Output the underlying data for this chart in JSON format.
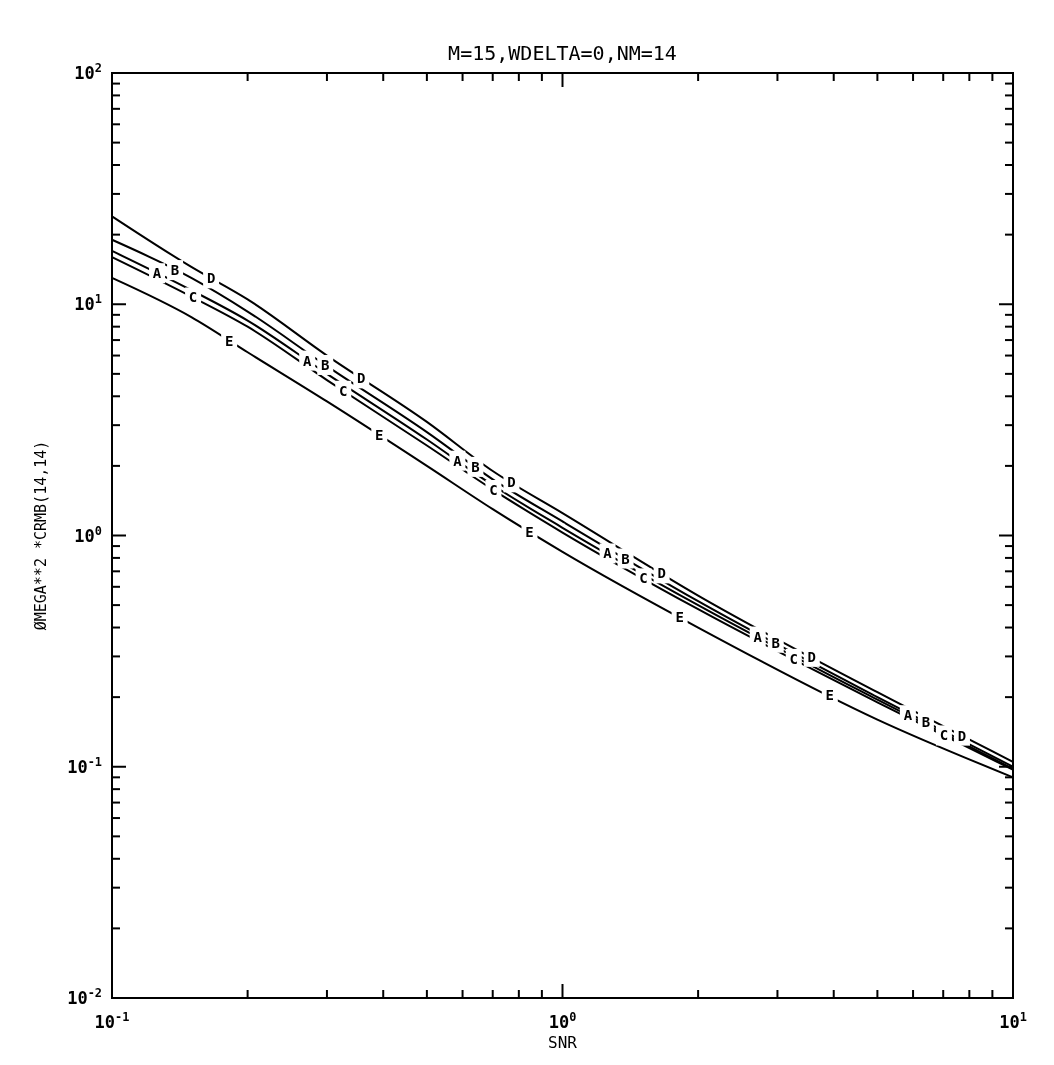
{
  "chart_data": {
    "type": "line",
    "title": "M=15,WDELTA=0,NM=14",
    "xlabel": "SNR",
    "ylabel": "ØMEGA**2 *CRMB(14,14)",
    "log": "xy",
    "grid": false,
    "legend": false,
    "marker": "none",
    "line_style": "solid",
    "xlim": [
      0.1,
      10
    ],
    "ylim": [
      0.01,
      100
    ],
    "xticks": [
      {
        "value": 0.1,
        "label": "10$^{-1}$"
      },
      {
        "value": 0.2,
        "label": null
      },
      {
        "value": 0.3,
        "label": null
      },
      {
        "value": 0.4,
        "label": null
      },
      {
        "value": 0.5,
        "label": null
      },
      {
        "value": 0.6,
        "label": null
      },
      {
        "value": 0.7,
        "label": null
      },
      {
        "value": 0.8,
        "label": null
      },
      {
        "value": 0.9,
        "label": null
      },
      {
        "value": 1,
        "label": "10$^{0}$"
      },
      {
        "value": 2,
        "label": null
      },
      {
        "value": 3,
        "label": null
      },
      {
        "value": 4,
        "label": null
      },
      {
        "value": 5,
        "label": null
      },
      {
        "value": 6,
        "label": null
      },
      {
        "value": 7,
        "label": null
      },
      {
        "value": 8,
        "label": null
      },
      {
        "value": 9,
        "label": null
      },
      {
        "value": 10,
        "label": "10$^{1}$"
      }
    ],
    "yticks": [
      {
        "value": 0.01,
        "label": "10$^{-2}$"
      },
      {
        "value": 0.02,
        "label": null
      },
      {
        "value": 0.03,
        "label": null
      },
      {
        "value": 0.04,
        "label": null
      },
      {
        "value": 0.05,
        "label": null
      },
      {
        "value": 0.06,
        "label": null
      },
      {
        "value": 0.07,
        "label": null
      },
      {
        "value": 0.08,
        "label": null
      },
      {
        "value": 0.09,
        "label": null
      },
      {
        "value": 0.1,
        "label": "10$^{-1}$"
      },
      {
        "value": 0.2,
        "label": null
      },
      {
        "value": 0.3,
        "label": null
      },
      {
        "value": 0.4,
        "label": null
      },
      {
        "value": 0.5,
        "label": null
      },
      {
        "value": 0.6,
        "label": null
      },
      {
        "value": 0.7,
        "label": null
      },
      {
        "value": 0.8,
        "label": null
      },
      {
        "value": 0.9,
        "label": null
      },
      {
        "value": 1,
        "label": "10$^{0}$"
      },
      {
        "value": 2,
        "label": null
      },
      {
        "value": 3,
        "label": null
      },
      {
        "value": 4,
        "label": null
      },
      {
        "value": 5,
        "label": null
      },
      {
        "value": 6,
        "label": null
      },
      {
        "value": 7,
        "label": null
      },
      {
        "value": 8,
        "label": null
      },
      {
        "value": 9,
        "label": null
      },
      {
        "value": 10,
        "label": "10$^{1}$"
      },
      {
        "value": 20,
        "label": null
      },
      {
        "value": 30,
        "label": null
      },
      {
        "value": 40,
        "label": null
      },
      {
        "value": 50,
        "label": null
      },
      {
        "value": 60,
        "label": null
      },
      {
        "value": 70,
        "label": null
      },
      {
        "value": 80,
        "label": null
      },
      {
        "value": 90,
        "label": null
      },
      {
        "value": 100,
        "label": "10$^{2}$"
      }
    ],
    "x": [
      0.1,
      0.15,
      0.2,
      0.3,
      0.5,
      0.7,
      1,
      2,
      5,
      10
    ],
    "series": [
      {
        "name": "A",
        "color": "#000000",
        "values": [
          17,
          11.5,
          8.5,
          5.0,
          2.6,
          1.65,
          1.08,
          0.5,
          0.195,
          0.098
        ]
      },
      {
        "name": "B",
        "color": "#000000",
        "values": [
          19,
          13,
          9.3,
          5.4,
          2.8,
          1.75,
          1.15,
          0.52,
          0.2,
          0.1
        ]
      },
      {
        "name": "C",
        "color": "#000000",
        "values": [
          16,
          10.8,
          8.0,
          4.7,
          2.45,
          1.58,
          1.03,
          0.48,
          0.19,
          0.097
        ]
      },
      {
        "name": "D",
        "color": "#000000",
        "values": [
          24,
          14.5,
          10.5,
          6.0,
          3.1,
          1.9,
          1.25,
          0.55,
          0.21,
          0.105
        ]
      },
      {
        "name": "E",
        "color": "#000000",
        "values": [
          13,
          8.8,
          6.2,
          3.8,
          2.0,
          1.3,
          0.85,
          0.4,
          0.16,
          0.09
        ]
      }
    ]
  }
}
